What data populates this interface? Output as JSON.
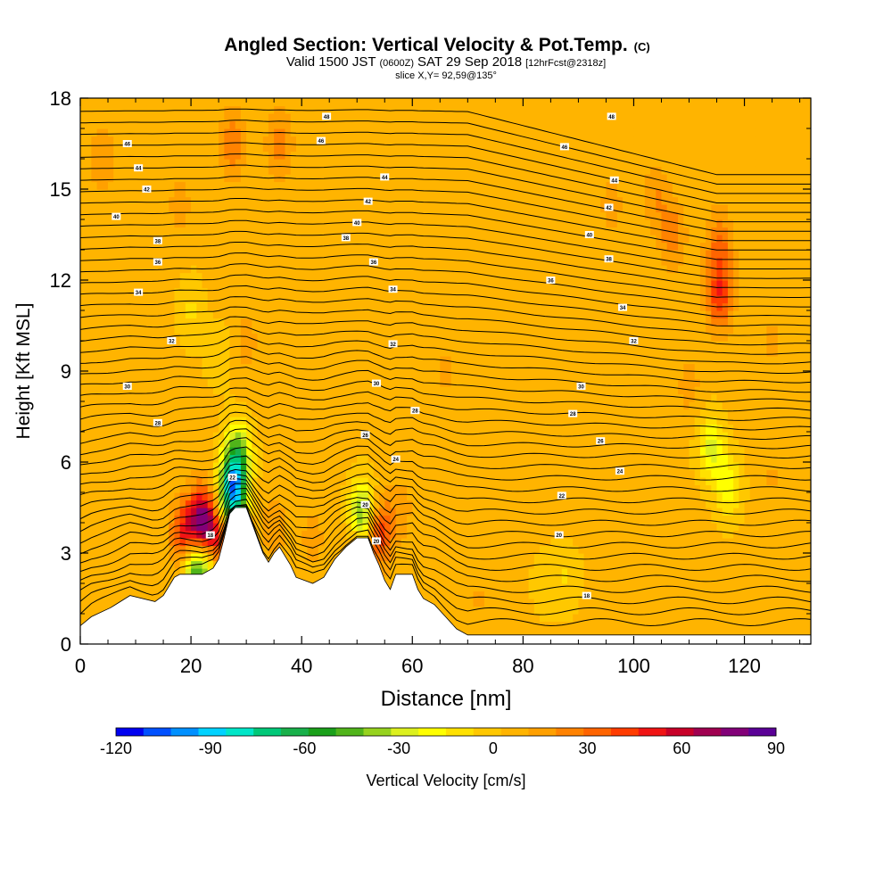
{
  "chart_data": {
    "type": "heatmap",
    "title": "Angled Section: Vertical Velocity & Pot.Temp.",
    "title_suffix": "(C)",
    "subtitle_parts": [
      "Valid 1500 JST",
      "(0600Z)",
      "SAT 29 Sep 2018",
      "[12hrFcst@2318z]"
    ],
    "slice_label": "slice X,Y= 92,59@135°",
    "xlabel": "Distance [nm]",
    "ylabel": "Height [Kft MSL]",
    "xlim": [
      0,
      132
    ],
    "ylim": [
      0,
      18
    ],
    "x_ticks": [
      0,
      20,
      40,
      60,
      80,
      100,
      120
    ],
    "y_ticks": [
      0,
      3,
      6,
      9,
      12,
      15,
      18
    ],
    "colorbar": {
      "label": "Vertical Velocity [cm/s]",
      "tick_values": [
        -120,
        -90,
        -60,
        -30,
        0,
        30,
        60,
        90
      ],
      "tick_labels": [
        "-120",
        "-90",
        "-60",
        "-30",
        "0",
        "30",
        "60",
        "90"
      ],
      "boundaries": [
        -120,
        90
      ],
      "colors": [
        "#0000f0",
        "#0050ff",
        "#0090ff",
        "#00d2ff",
        "#00e6c8",
        "#00c878",
        "#18b04a",
        "#1aa01a",
        "#50b41a",
        "#96d21e",
        "#dcf01e",
        "#ffff00",
        "#ffe100",
        "#ffc800",
        "#ffb400",
        "#ffa000",
        "#ff8200",
        "#ff6400",
        "#ff3c00",
        "#f01414",
        "#c80028",
        "#a00050",
        "#820078",
        "#5a0096"
      ]
    },
    "background_velocity_cms": 5,
    "velocity_features": [
      {
        "x": 19,
        "y": 3.5,
        "value": 60
      },
      {
        "x": 22,
        "y": 4.0,
        "value": 80
      },
      {
        "x": 24.5,
        "y": 3.2,
        "value": 60
      },
      {
        "x": 27.5,
        "y": 5.0,
        "value": -90
      },
      {
        "x": 28.5,
        "y": 6.2,
        "value": -45
      },
      {
        "x": 20.5,
        "y": 2.7,
        "value": -60
      },
      {
        "x": 23.5,
        "y": 2.7,
        "value": -40
      },
      {
        "x": 51,
        "y": 4.3,
        "value": -45
      },
      {
        "x": 54,
        "y": 3.7,
        "value": 45
      },
      {
        "x": 50,
        "y": 2.8,
        "value": 25
      },
      {
        "x": 114,
        "y": 6.5,
        "value": -25
      },
      {
        "x": 117,
        "y": 5.2,
        "value": -20
      },
      {
        "x": 115.5,
        "y": 11.5,
        "value": 45
      },
      {
        "x": 115.5,
        "y": 13.2,
        "value": 30
      },
      {
        "x": 107,
        "y": 13.5,
        "value": 25
      },
      {
        "x": 104,
        "y": 14.8,
        "value": 20
      },
      {
        "x": 96,
        "y": 14.5,
        "value": 15
      },
      {
        "x": 27.5,
        "y": 16.5,
        "value": 28
      },
      {
        "x": 36,
        "y": 16.5,
        "value": 25
      },
      {
        "x": 4,
        "y": 16.0,
        "value": 18
      },
      {
        "x": 18,
        "y": 14.5,
        "value": 15
      },
      {
        "x": 35,
        "y": 3.8,
        "value": 18
      },
      {
        "x": 42,
        "y": 3.5,
        "value": 15
      },
      {
        "x": 58,
        "y": 4.5,
        "value": 15
      },
      {
        "x": 30,
        "y": 10,
        "value": 15
      },
      {
        "x": 20,
        "y": 11,
        "value": -8
      },
      {
        "x": 25,
        "y": 9.5,
        "value": -5
      },
      {
        "x": 84,
        "y": 2.0,
        "value": -5
      },
      {
        "x": 88,
        "y": 2.2,
        "value": -6
      },
      {
        "x": 66,
        "y": 9.0,
        "value": 14
      },
      {
        "x": 110,
        "y": 8.5,
        "value": 15
      },
      {
        "x": 125,
        "y": 10,
        "value": 14
      },
      {
        "x": 125,
        "y": 5.5,
        "value": 12
      },
      {
        "x": 100,
        "y": 3.5,
        "value": 10
      },
      {
        "x": 72,
        "y": 1.5,
        "value": 12
      }
    ],
    "terrain": [
      {
        "x": 0,
        "h": 0.6
      },
      {
        "x": 2,
        "h": 0.9
      },
      {
        "x": 5.5,
        "h": 1.2
      },
      {
        "x": 9,
        "h": 1.6
      },
      {
        "x": 13.5,
        "h": 1.4
      },
      {
        "x": 15,
        "h": 1.6
      },
      {
        "x": 16,
        "h": 1.9
      },
      {
        "x": 17,
        "h": 2.2
      },
      {
        "x": 18,
        "h": 2.3
      },
      {
        "x": 22,
        "h": 2.3
      },
      {
        "x": 24,
        "h": 2.5
      },
      {
        "x": 25,
        "h": 2.8
      },
      {
        "x": 26,
        "h": 3.5
      },
      {
        "x": 27,
        "h": 4.3
      },
      {
        "x": 28,
        "h": 4.5
      },
      {
        "x": 30,
        "h": 4.5
      },
      {
        "x": 31,
        "h": 4.0
      },
      {
        "x": 32,
        "h": 3.5
      },
      {
        "x": 33,
        "h": 3.0
      },
      {
        "x": 34,
        "h": 2.7
      },
      {
        "x": 35,
        "h": 3.0
      },
      {
        "x": 36,
        "h": 3.2
      },
      {
        "x": 37,
        "h": 2.9
      },
      {
        "x": 38,
        "h": 2.6
      },
      {
        "x": 39,
        "h": 2.2
      },
      {
        "x": 42,
        "h": 2.0
      },
      {
        "x": 44,
        "h": 2.2
      },
      {
        "x": 45,
        "h": 2.5
      },
      {
        "x": 46,
        "h": 2.8
      },
      {
        "x": 48,
        "h": 3.2
      },
      {
        "x": 50,
        "h": 3.5
      },
      {
        "x": 52,
        "h": 3.5
      },
      {
        "x": 53,
        "h": 3.0
      },
      {
        "x": 54,
        "h": 2.6
      },
      {
        "x": 55,
        "h": 2.1
      },
      {
        "x": 56,
        "h": 1.8
      },
      {
        "x": 57,
        "h": 2.3
      },
      {
        "x": 60,
        "h": 2.3
      },
      {
        "x": 61,
        "h": 1.8
      },
      {
        "x": 62,
        "h": 1.5
      },
      {
        "x": 64,
        "h": 1.3
      },
      {
        "x": 65,
        "h": 1.1
      },
      {
        "x": 66,
        "h": 0.9
      },
      {
        "x": 67,
        "h": 0.7
      },
      {
        "x": 68,
        "h": 0.5
      },
      {
        "x": 70,
        "h": 0.3
      },
      {
        "x": 132,
        "h": 0.3
      }
    ],
    "isentrope_count": 46,
    "isentrope_labels": [
      {
        "x": 44.5,
        "y": 17.4,
        "text": "48"
      },
      {
        "x": 8.5,
        "y": 16.5,
        "text": "46"
      },
      {
        "x": 43.5,
        "y": 16.6,
        "text": "46"
      },
      {
        "x": 10.5,
        "y": 15.7,
        "text": "44"
      },
      {
        "x": 55,
        "y": 15.4,
        "text": "44"
      },
      {
        "x": 12,
        "y": 15.0,
        "text": "42"
      },
      {
        "x": 52,
        "y": 14.6,
        "text": "42"
      },
      {
        "x": 6.5,
        "y": 14.1,
        "text": "40"
      },
      {
        "x": 50,
        "y": 13.9,
        "text": "40"
      },
      {
        "x": 14,
        "y": 13.3,
        "text": "38"
      },
      {
        "x": 48,
        "y": 13.4,
        "text": "38"
      },
      {
        "x": 14,
        "y": 12.6,
        "text": "36"
      },
      {
        "x": 53,
        "y": 12.6,
        "text": "36"
      },
      {
        "x": 10.5,
        "y": 11.6,
        "text": "34"
      },
      {
        "x": 56.5,
        "y": 11.7,
        "text": "34"
      },
      {
        "x": 16.5,
        "y": 10.0,
        "text": "32"
      },
      {
        "x": 56.5,
        "y": 9.9,
        "text": "32"
      },
      {
        "x": 8.5,
        "y": 8.5,
        "text": "30"
      },
      {
        "x": 53.5,
        "y": 8.6,
        "text": "30"
      },
      {
        "x": 14,
        "y": 7.3,
        "text": "28"
      },
      {
        "x": 60.5,
        "y": 7.7,
        "text": "28"
      },
      {
        "x": 51.5,
        "y": 6.9,
        "text": "26"
      },
      {
        "x": 57,
        "y": 6.1,
        "text": "24"
      },
      {
        "x": 27.5,
        "y": 5.5,
        "text": "22"
      },
      {
        "x": 51.5,
        "y": 4.6,
        "text": "20"
      },
      {
        "x": 23.5,
        "y": 3.6,
        "text": "18"
      },
      {
        "x": 53.5,
        "y": 3.4,
        "text": "20"
      },
      {
        "x": 96,
        "y": 17.4,
        "text": "48"
      },
      {
        "x": 87.5,
        "y": 16.4,
        "text": "46"
      },
      {
        "x": 96.5,
        "y": 15.3,
        "text": "44"
      },
      {
        "x": 95.5,
        "y": 14.4,
        "text": "42"
      },
      {
        "x": 92,
        "y": 13.5,
        "text": "40"
      },
      {
        "x": 95.5,
        "y": 12.7,
        "text": "38"
      },
      {
        "x": 85,
        "y": 12.0,
        "text": "36"
      },
      {
        "x": 98,
        "y": 11.1,
        "text": "34"
      },
      {
        "x": 100,
        "y": 10.0,
        "text": "32"
      },
      {
        "x": 90.5,
        "y": 8.5,
        "text": "30"
      },
      {
        "x": 89,
        "y": 7.6,
        "text": "28"
      },
      {
        "x": 94,
        "y": 6.7,
        "text": "26"
      },
      {
        "x": 97.5,
        "y": 5.7,
        "text": "24"
      },
      {
        "x": 87,
        "y": 4.9,
        "text": "22"
      },
      {
        "x": 86.5,
        "y": 3.6,
        "text": "20"
      },
      {
        "x": 91.5,
        "y": 1.6,
        "text": "18"
      }
    ]
  }
}
